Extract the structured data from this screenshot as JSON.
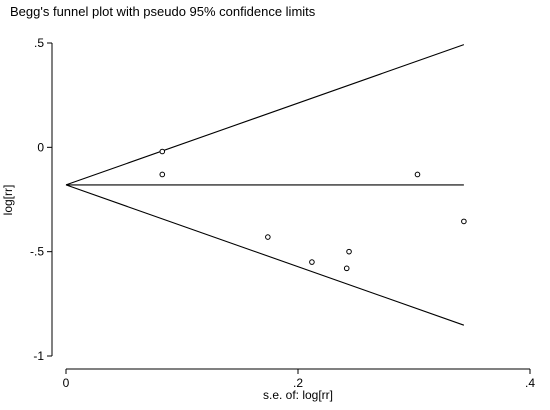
{
  "chart_data": {
    "type": "scatter",
    "title": "Begg's funnel plot with pseudo 95% confidence limits",
    "xlabel": "s.e. of: log[rr]",
    "ylabel": "log[rr]",
    "xlim": [
      0,
      0.4
    ],
    "ylim": [
      -1,
      0.5
    ],
    "x_ticks": [
      0,
      0.2,
      0.4
    ],
    "x_tick_labels": [
      "0",
      ".2",
      ".4"
    ],
    "y_ticks": [
      0.5,
      0,
      -0.5,
      -1
    ],
    "y_tick_labels": [
      ".5",
      "0",
      "-.5",
      "-1"
    ],
    "grid": false,
    "legend": "none",
    "points": [
      {
        "x": 0.083,
        "y": -0.02
      },
      {
        "x": 0.083,
        "y": -0.13
      },
      {
        "x": 0.174,
        "y": -0.43
      },
      {
        "x": 0.212,
        "y": -0.55
      },
      {
        "x": 0.242,
        "y": -0.58
      },
      {
        "x": 0.244,
        "y": -0.5
      },
      {
        "x": 0.303,
        "y": -0.13
      },
      {
        "x": 0.343,
        "y": -0.355
      }
    ],
    "pooled_estimate": -0.18,
    "se_max": 0.343,
    "confidence_z": 1.96
  }
}
